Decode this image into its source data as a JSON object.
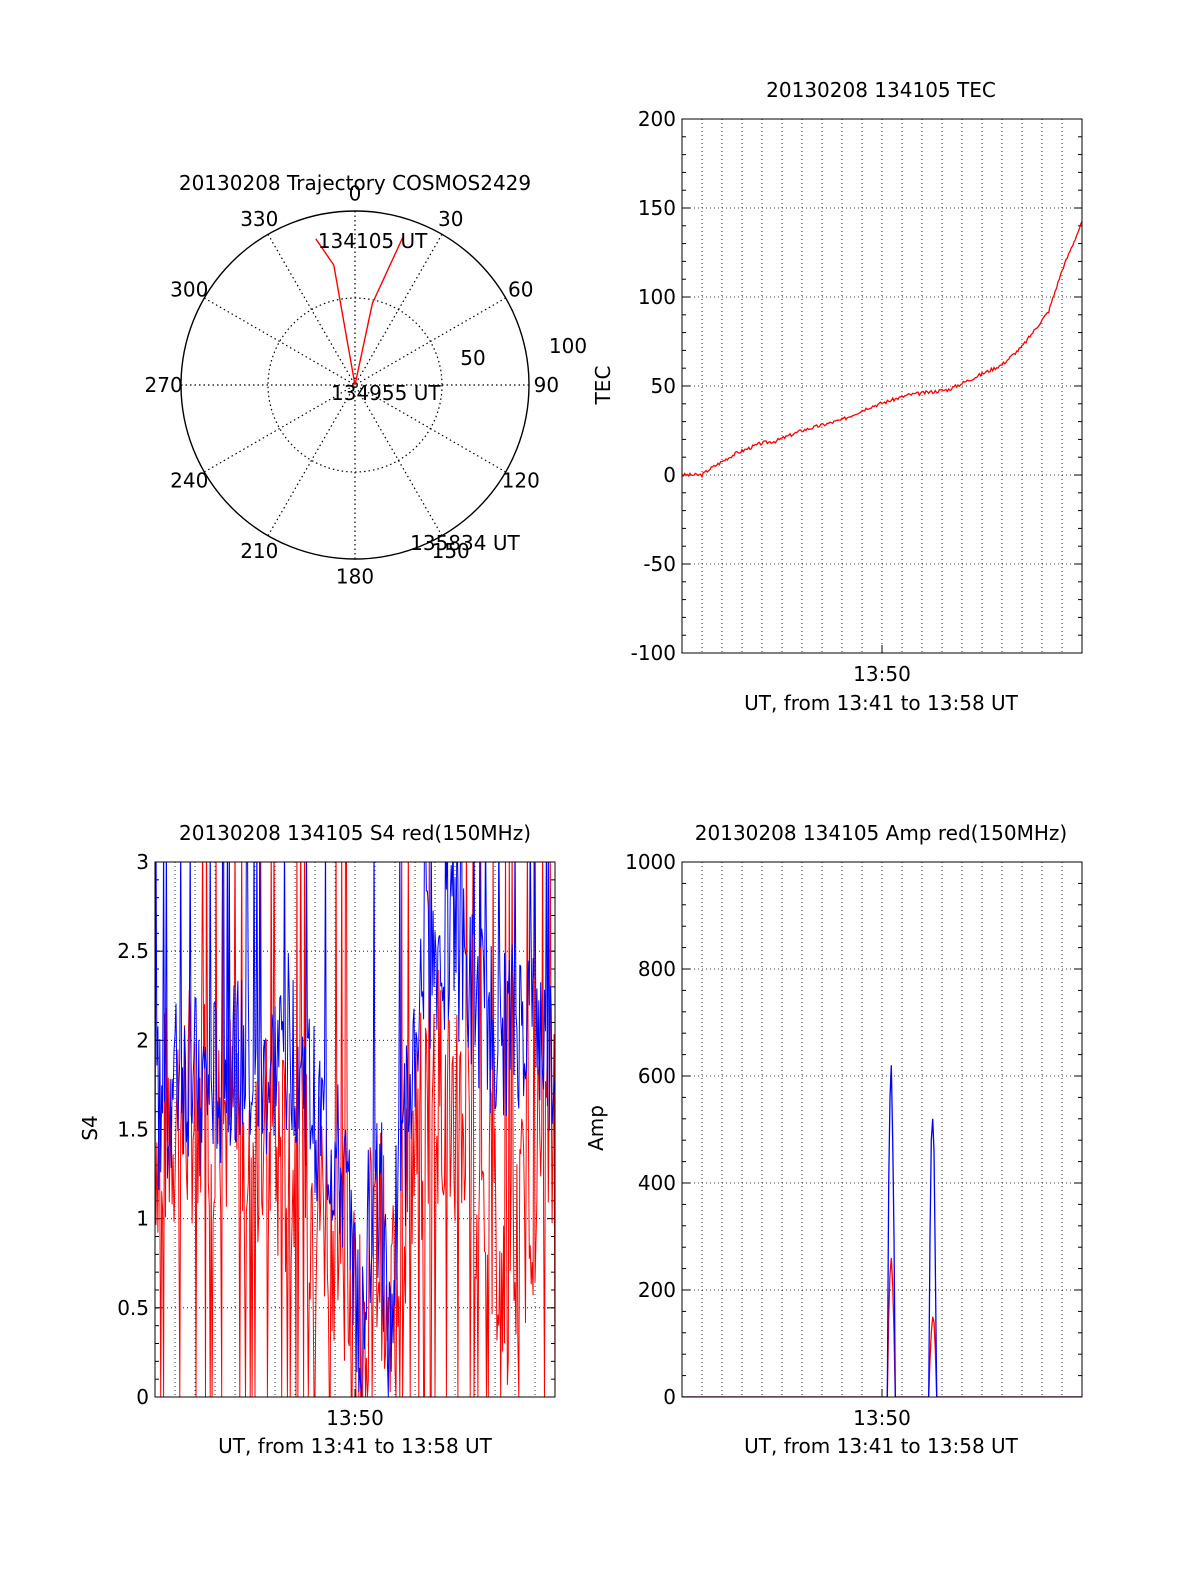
{
  "colors": {
    "red": "#ff0000",
    "blue": "#0000ff",
    "axis": "#000000",
    "grid": "#000000"
  },
  "chart_data": [
    {
      "id": "trajectory",
      "type": "polar",
      "title": "20130208 Trajectory COSMOS2429",
      "angle_labels": [
        "0",
        "30",
        "60",
        "90",
        "120",
        "150",
        "180",
        "210",
        "240",
        "270",
        "300",
        "330"
      ],
      "radial_labels": [
        "50",
        "100"
      ],
      "rmax": 100,
      "grid": true,
      "path": [
        [
          -15,
          87
        ],
        [
          -10,
          70
        ],
        [
          0,
          0
        ],
        [
          12,
          48
        ],
        [
          18,
          90
        ]
      ],
      "annotations": [
        {
          "text": "134105 UT",
          "theta": -15,
          "r": 87
        },
        {
          "text": "134955 UT",
          "theta": 0,
          "r": 0
        },
        {
          "text": "135834 UT",
          "theta": 160,
          "r": 96
        }
      ],
      "series_color": "red"
    },
    {
      "id": "tec",
      "type": "line",
      "title": "20130208 134105 TEC",
      "ylabel": "TEC",
      "xlabel": "UT, from 13:41 to 13:58 UT",
      "xtick_labels": [
        {
          "value": 13.83,
          "label": "13:50"
        }
      ],
      "xlim": [
        13.68,
        13.98
      ],
      "ylim": [
        -100,
        200
      ],
      "yticks": [
        -100,
        -50,
        0,
        50,
        100,
        150,
        200
      ],
      "grid": true,
      "series": [
        {
          "color": "red",
          "x": [
            13.68,
            13.695,
            13.7,
            13.72,
            13.74,
            13.75,
            13.77,
            13.8,
            13.82,
            13.85,
            13.88,
            13.9,
            13.92,
            13.935,
            13.945,
            13.955,
            13.965,
            13.98
          ],
          "y": [
            0,
            0,
            3,
            12,
            18,
            19,
            25,
            31,
            38,
            45,
            48,
            55,
            62,
            72,
            82,
            92,
            115,
            142
          ]
        }
      ]
    },
    {
      "id": "s4",
      "type": "line",
      "title": "20130208 134105 S4 red(150MHz)",
      "ylabel": "S4",
      "xlabel": "UT, from 13:41 to 13:58 UT",
      "xtick_labels": [
        {
          "value": 13.83,
          "label": "13:50"
        }
      ],
      "xlim": [
        13.68,
        13.98
      ],
      "ylim": [
        0,
        3
      ],
      "yticks": [
        0,
        0.5,
        1,
        1.5,
        2,
        2.5,
        3
      ],
      "ytick_labels": [
        "0",
        "0.5",
        "1",
        "1.5",
        "2",
        "2.5",
        "3"
      ],
      "grid": true,
      "series": [
        {
          "color": "red",
          "x": [
            13.68,
            13.72,
            13.76,
            13.79,
            13.81,
            13.82,
            13.83,
            13.835,
            13.84,
            13.85,
            13.855,
            13.86,
            13.87,
            13.89,
            13.91,
            13.93,
            13.94,
            13.95,
            13.96,
            13.98
          ],
          "y": [
            1.5,
            1.7,
            1.4,
            1.2,
            1.1,
            0.85,
            0.5,
            0.1,
            0.75,
            0.9,
            0.12,
            0.8,
            1.2,
            1.8,
            1.6,
            1.1,
            0.75,
            0.7,
            1.2,
            1.5
          ]
        },
        {
          "color": "blue",
          "x": [
            13.68,
            13.7,
            13.72,
            13.74,
            13.76,
            13.78,
            13.8,
            13.82,
            13.83,
            13.835,
            13.84,
            13.85,
            13.855,
            13.86,
            13.87,
            13.88,
            13.9,
            13.92,
            13.94,
            13.96,
            13.98
          ],
          "y": [
            1.6,
            1.8,
            1.7,
            1.9,
            1.7,
            2.0,
            1.6,
            1.2,
            0.8,
            0.15,
            1.0,
            1.1,
            0.12,
            0.9,
            1.6,
            2.3,
            2.6,
            2.2,
            2.0,
            2.1,
            1.9
          ]
        }
      ]
    },
    {
      "id": "amp",
      "type": "line",
      "title": "20130208 134105 Amp red(150MHz)",
      "ylabel": "Amp",
      "xlabel": "UT, from 13:41 to 13:58 UT",
      "xtick_labels": [
        {
          "value": 13.83,
          "label": "13:50"
        }
      ],
      "xlim": [
        13.68,
        13.98
      ],
      "ylim": [
        0,
        1000
      ],
      "yticks": [
        0,
        200,
        400,
        600,
        800,
        1000
      ],
      "grid": true,
      "series": [
        {
          "color": "red",
          "x": [
            13.68,
            13.834,
            13.835,
            13.836,
            13.837,
            13.838,
            13.839,
            13.84,
            13.865,
            13.866,
            13.867,
            13.868,
            13.869,
            13.87,
            13.871,
            13.98
          ],
          "y": [
            0,
            0,
            150,
            230,
            260,
            210,
            120,
            0,
            0,
            70,
            120,
            150,
            140,
            90,
            0,
            0
          ]
        },
        {
          "color": "blue",
          "x": [
            13.68,
            13.834,
            13.835,
            13.836,
            13.837,
            13.838,
            13.839,
            13.84,
            13.865,
            13.866,
            13.867,
            13.868,
            13.869,
            13.87,
            13.871,
            13.98
          ],
          "y": [
            0,
            0,
            400,
            560,
            620,
            480,
            300,
            0,
            0,
            300,
            480,
            520,
            460,
            250,
            0,
            0
          ]
        }
      ]
    }
  ]
}
